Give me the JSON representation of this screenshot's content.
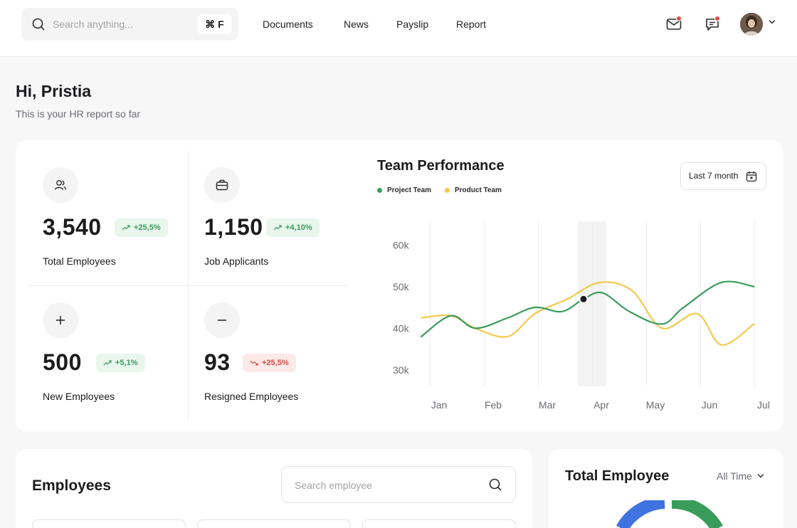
{
  "header": {
    "search_placeholder": "Search anything...",
    "shortcut": "⌘ F",
    "nav": [
      "Documents",
      "News",
      "Payslip",
      "Report"
    ]
  },
  "greeting": {
    "title": "Hi, Pristia",
    "subtitle": "This is your HR report so far"
  },
  "stats": [
    {
      "value": "3,540",
      "change": "+25,5%",
      "trend": "up",
      "label": "Total  Employees",
      "icon": "users-icon"
    },
    {
      "value": "1,150",
      "change": "+4,10%",
      "trend": "up",
      "label": "Job Applicants",
      "icon": "briefcase-icon"
    },
    {
      "value": "500",
      "change": "+5,1%",
      "trend": "up",
      "label": "New  Employees",
      "icon": "plus-icon"
    },
    {
      "value": "93",
      "change": "+25,5%",
      "trend": "down",
      "label": "Resigned Employees",
      "icon": "minus-icon"
    }
  ],
  "performance": {
    "title": "Team Performance",
    "range": "Last 7 month",
    "legend": [
      "Project Team",
      "Product Team"
    ]
  },
  "chart_data": {
    "type": "line",
    "title": "Team Performance",
    "categories": [
      "Jan",
      "Feb",
      "Mar",
      "Apr",
      "May",
      "Jun",
      "Jul"
    ],
    "ylim": [
      25000,
      65000
    ],
    "yticks": [
      "60k",
      "50k",
      "40k",
      "30k"
    ],
    "highlight": "Apr",
    "grid": "vertical",
    "series": [
      {
        "name": "Project Team",
        "color": "#3a9c5b",
        "points": [
          [
            0,
            38000
          ],
          [
            0.55,
            43000
          ],
          [
            1,
            40000
          ],
          [
            1.6,
            42500
          ],
          [
            2.1,
            45000
          ],
          [
            2.6,
            44000
          ],
          [
            3,
            47000
          ],
          [
            3.35,
            48500
          ],
          [
            3.85,
            44000
          ],
          [
            4.45,
            41000
          ],
          [
            4.85,
            45000
          ],
          [
            5.55,
            51000
          ],
          [
            6.15,
            50000
          ]
        ]
      },
      {
        "name": "Product Team",
        "color": "#f3c94c",
        "points": [
          [
            0,
            42500
          ],
          [
            0.55,
            43000
          ],
          [
            1,
            40000
          ],
          [
            1.6,
            38000
          ],
          [
            2.1,
            43500
          ],
          [
            2.7,
            47000
          ],
          [
            3.3,
            51000
          ],
          [
            3.9,
            49000
          ],
          [
            4.45,
            40000
          ],
          [
            5.1,
            43500
          ],
          [
            5.55,
            36000
          ],
          [
            6.15,
            41000
          ]
        ]
      }
    ],
    "marker": {
      "series": "Project Team",
      "x": 3,
      "y": 47000
    }
  },
  "employees": {
    "title": "Employees",
    "search_placeholder": "Search employee"
  },
  "total_employee": {
    "title": "Total Employee",
    "filter": "All Time"
  }
}
